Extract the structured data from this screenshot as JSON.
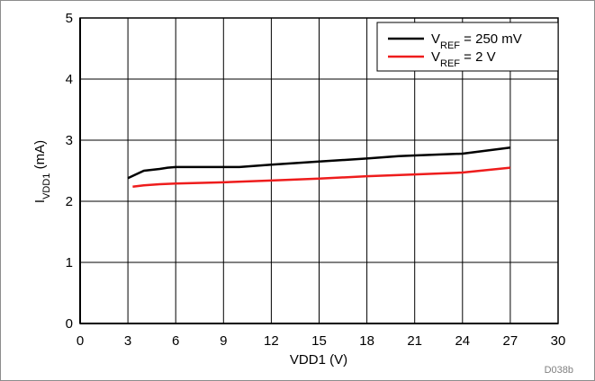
{
  "chart_data": {
    "type": "line",
    "xlabel": "VDD1 (V)",
    "ylabel": {
      "main": "I",
      "sub": "VDD1",
      "unit": " (mA)"
    },
    "xlim": [
      0,
      30
    ],
    "ylim": [
      0,
      5
    ],
    "xticks": [
      0,
      3,
      6,
      9,
      12,
      15,
      18,
      21,
      24,
      27,
      30
    ],
    "yticks": [
      0,
      1,
      2,
      3,
      4,
      5
    ],
    "grid": true,
    "legend_position": "top-right",
    "series": [
      {
        "name": {
          "main": "V",
          "sub": "REF",
          "rest": " = 250 mV"
        },
        "color": "#000000",
        "x": [
          3.0,
          3.5,
          4.0,
          5.0,
          5.5,
          6.0,
          10.0,
          12.0,
          15.0,
          18.0,
          20.0,
          21.0,
          24.0,
          27.0
        ],
        "y": [
          2.38,
          2.44,
          2.5,
          2.53,
          2.55,
          2.56,
          2.56,
          2.6,
          2.65,
          2.7,
          2.74,
          2.75,
          2.78,
          2.88
        ]
      },
      {
        "name": {
          "main": "V",
          "sub": "REF",
          "rest": " = 2 V"
        },
        "color": "#ee1c1c",
        "x": [
          3.3,
          4.0,
          5.0,
          6.0,
          9.0,
          12.0,
          15.0,
          18.0,
          21.0,
          24.0,
          27.0
        ],
        "y": [
          2.24,
          2.26,
          2.28,
          2.29,
          2.31,
          2.34,
          2.37,
          2.41,
          2.44,
          2.47,
          2.55
        ]
      }
    ]
  },
  "figure_id": "D038b"
}
